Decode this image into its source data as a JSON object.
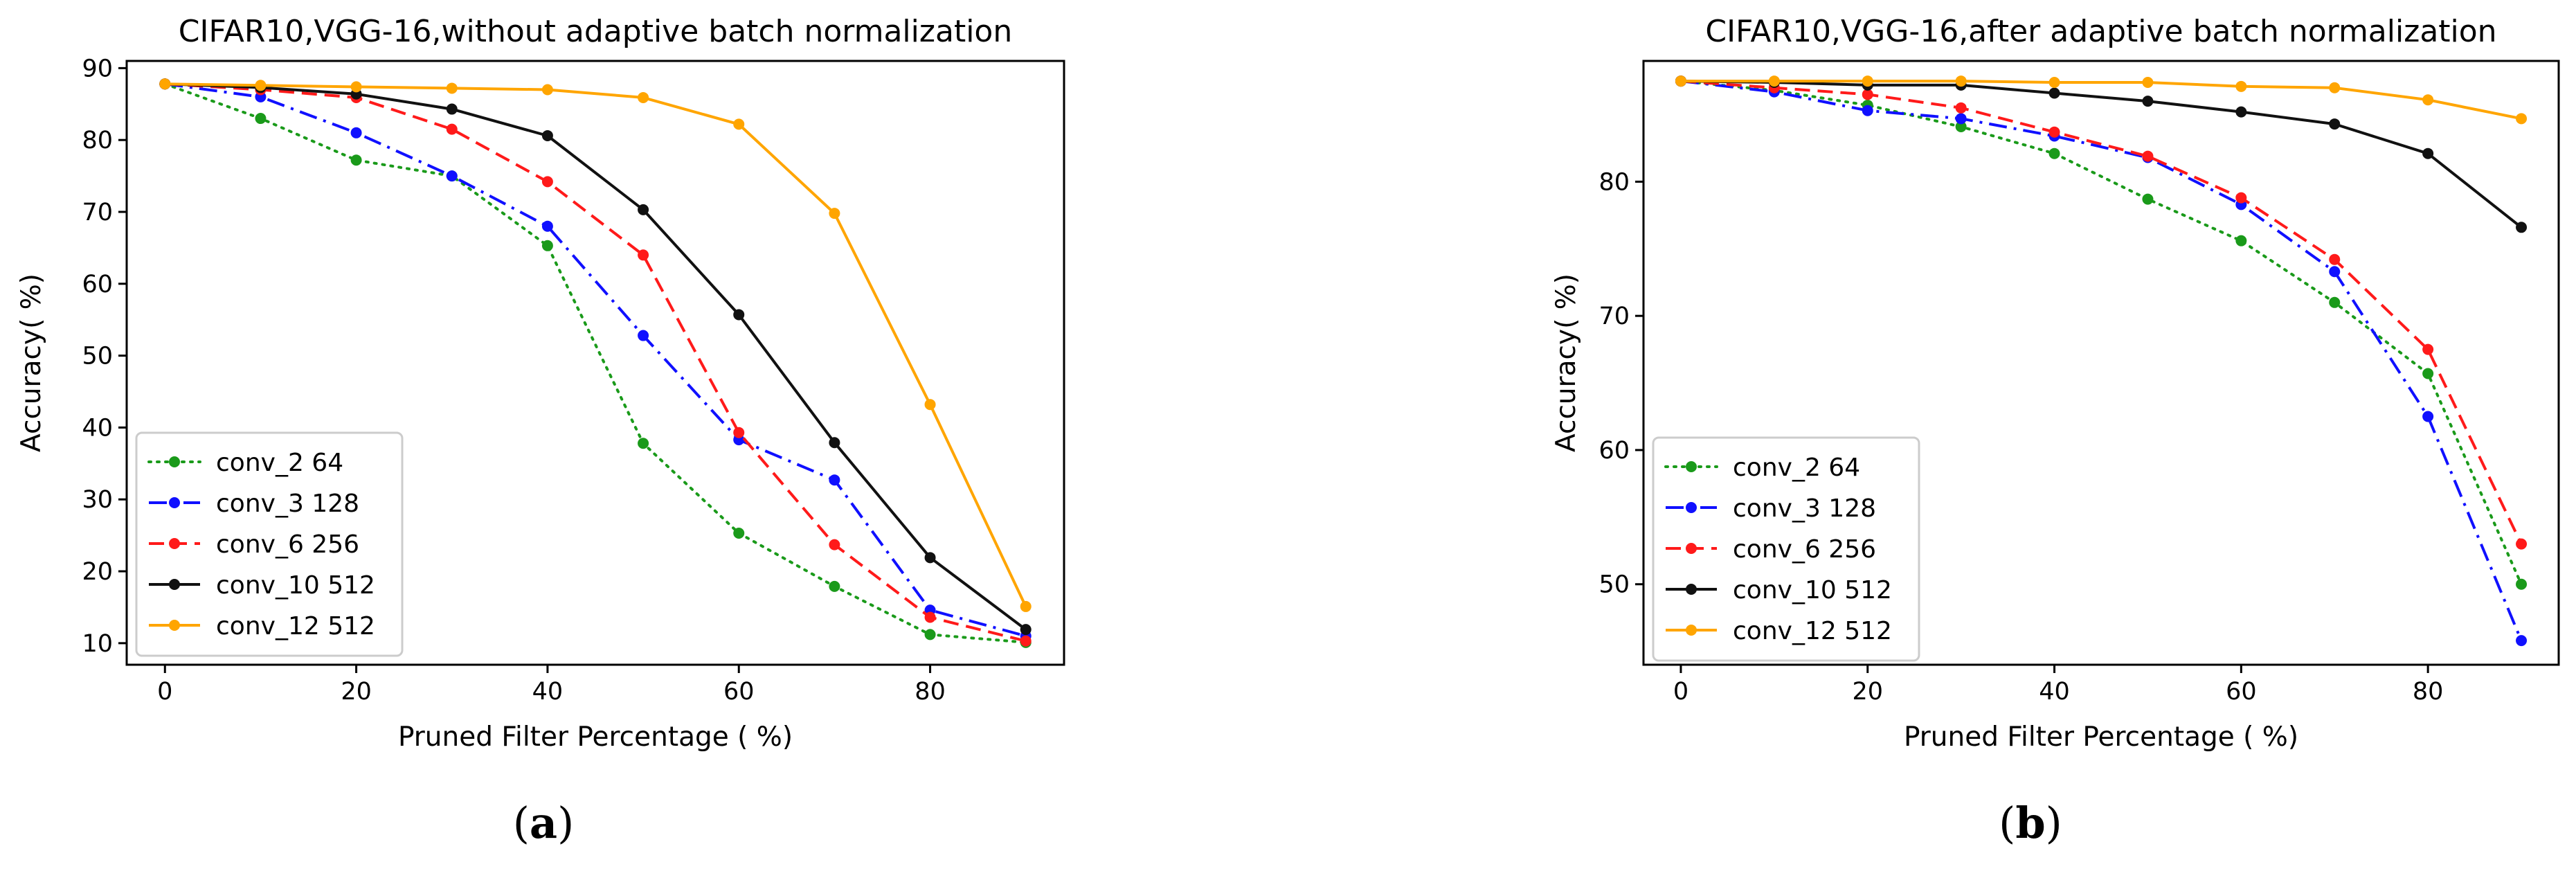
{
  "chart_data": [
    {
      "panel_label": "a",
      "type": "line",
      "title": "CIFAR10,VGG-16,without adaptive batch normalization",
      "xlabel": "Pruned Filter Percentage ( %)",
      "ylabel": "Accuracy( %)",
      "x": [
        0,
        10,
        20,
        30,
        40,
        50,
        60,
        70,
        80,
        90
      ],
      "xlim": [
        -4,
        94
      ],
      "ylim": [
        7,
        91
      ],
      "xticks": [
        0,
        20,
        40,
        60,
        80
      ],
      "yticks": [
        10,
        20,
        30,
        40,
        50,
        60,
        70,
        80,
        90
      ],
      "legend_position": "lower-left",
      "series": [
        {
          "name": "conv_2 64",
          "color": "#1a9a1a",
          "style": "dotted",
          "values": [
            87.8,
            83,
            77.2,
            75,
            65.3,
            37.8,
            25.3,
            17.9,
            11.2,
            10.1
          ]
        },
        {
          "name": "conv_3 128",
          "color": "#1010ff",
          "style": "dashdot",
          "values": [
            87.8,
            86,
            81,
            75,
            68,
            52.8,
            38.3,
            32.7,
            14.6,
            11
          ]
        },
        {
          "name": "conv_6 256",
          "color": "#ff1a1a",
          "style": "dashed",
          "values": [
            87.8,
            87,
            85.9,
            81.5,
            74.2,
            64,
            39.3,
            23.7,
            13.6,
            10.3
          ]
        },
        {
          "name": "conv_10 512",
          "color": "#111111",
          "style": "solid",
          "values": [
            87.8,
            87.3,
            86.4,
            84.3,
            80.6,
            70.3,
            55.7,
            37.9,
            21.9,
            11.9
          ]
        },
        {
          "name": "conv_12 512",
          "color": "#ffa500",
          "style": "solid",
          "values": [
            87.8,
            87.6,
            87.4,
            87.2,
            87,
            85.9,
            82.2,
            69.8,
            43.2,
            15.1
          ]
        }
      ]
    },
    {
      "panel_label": "b",
      "type": "line",
      "title": "CIFAR10,VGG-16,after adaptive batch normalization",
      "xlabel": "Pruned Filter Percentage ( %)",
      "ylabel": "Accuracy( %)",
      "x": [
        0,
        10,
        20,
        30,
        40,
        50,
        60,
        70,
        80,
        90
      ],
      "xlim": [
        -4,
        94
      ],
      "ylim": [
        44,
        89
      ],
      "xticks": [
        0,
        20,
        40,
        60,
        80
      ],
      "yticks": [
        50,
        60,
        70,
        80
      ],
      "legend_position": "lower-left",
      "series": [
        {
          "name": "conv_2 64",
          "color": "#1a9a1a",
          "style": "dotted",
          "values": [
            87.5,
            86.8,
            85.7,
            84.1,
            82.1,
            78.7,
            75.6,
            71,
            65.7,
            50
          ]
        },
        {
          "name": "conv_3 128",
          "color": "#1010ff",
          "style": "dashdot",
          "values": [
            87.5,
            86.7,
            85.3,
            84.7,
            83.4,
            81.8,
            78.3,
            73.3,
            62.5,
            45.8
          ]
        },
        {
          "name": "conv_6 256",
          "color": "#ff1a1a",
          "style": "dashed",
          "values": [
            87.5,
            87,
            86.5,
            85.5,
            83.7,
            81.9,
            78.8,
            74.2,
            67.5,
            53
          ]
        },
        {
          "name": "conv_10 512",
          "color": "#111111",
          "style": "solid",
          "values": [
            87.5,
            87.4,
            87.2,
            87.2,
            86.6,
            86,
            85.2,
            84.3,
            82.1,
            76.6
          ]
        },
        {
          "name": "conv_12 512",
          "color": "#ffa500",
          "style": "solid",
          "values": [
            87.5,
            87.5,
            87.5,
            87.5,
            87.4,
            87.4,
            87.1,
            87,
            86.1,
            84.7
          ]
        }
      ]
    }
  ]
}
